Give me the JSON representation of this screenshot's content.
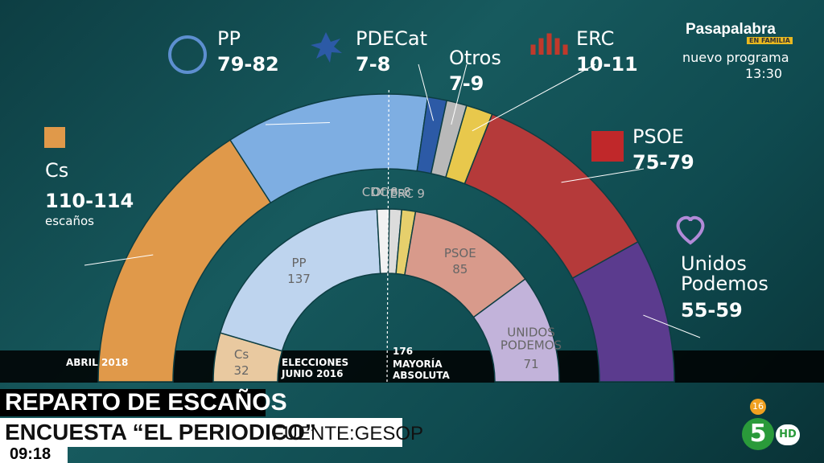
{
  "chart_data": {
    "type": "hemicycle",
    "title": "REPARTO DE ESCAÑOS",
    "subtitle": "ENCUESTA “EL PERIODICO”",
    "source": "FUENTE:GESOP",
    "majority": 176,
    "majority_label": "MAYORÍA ABSOLUTA",
    "unit_label": "escaños",
    "rings": [
      {
        "name": "ABRIL 2018",
        "categories": [
          "Cs",
          "PP",
          "PDECat",
          "Otros",
          "ERC",
          "PSOE",
          "Unidos Podemos"
        ],
        "values": [
          [
            110,
            114
          ],
          [
            79,
            82
          ],
          [
            7,
            8
          ],
          [
            7,
            9
          ],
          [
            10,
            11
          ],
          [
            75,
            79
          ],
          [
            55,
            59
          ]
        ],
        "value_labels": [
          "110-114",
          "79-82",
          "7-8",
          "7-9",
          "10-11",
          "75-79",
          "55-59"
        ],
        "colors": [
          "#e0994a",
          "#7eaee2",
          "#2c5aa6",
          "#b9b9b9",
          "#e8c84c",
          "#b53a3a",
          "#5b3b8e"
        ]
      },
      {
        "name": "ELECCIONES JUNIO 2016",
        "categories": [
          "Cs",
          "PP",
          "CDC",
          "Otros",
          "ERC",
          "PSOE",
          "UNIDOS PODEMOS"
        ],
        "values": [
          32,
          137,
          8,
          8,
          9,
          85,
          71
        ],
        "colors": [
          "#e9c9a0",
          "#bed4ee",
          "#f2f2f2",
          "#dcdcdc",
          "#e6cf6c",
          "#d89a8b",
          "#c2b3da"
        ]
      }
    ]
  },
  "overlay": {
    "program": "Pasapalabra",
    "badge": "EN FAMILIA",
    "next": "nuevo programa",
    "time": "13:30",
    "clock": "09:18",
    "rating": "16",
    "channel": "5",
    "hd": "HD"
  }
}
